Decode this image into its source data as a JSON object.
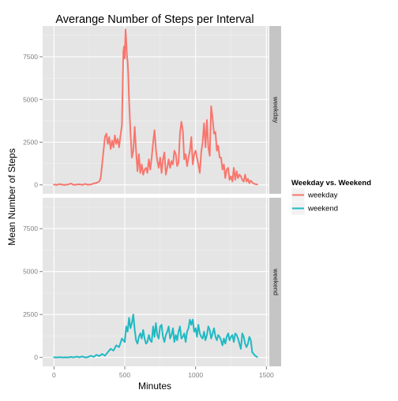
{
  "chart_data": {
    "type": "line",
    "title": "Averange Number of Steps per Interval",
    "xlabel": "Minutes",
    "ylabel": "Mean Number of Steps",
    "xlim": [
      -80,
      1515
    ],
    "ylim": [
      -520,
      9300
    ],
    "x_ticks": [
      0,
      500,
      1000,
      1500
    ],
    "x_tick_labels": [
      "0",
      "500",
      "1000",
      "1500"
    ],
    "y_ticks": [
      0,
      2500,
      5000,
      7500
    ],
    "y_tick_labels": [
      "0",
      "2500",
      "5000",
      "7500"
    ],
    "grid": true,
    "legend": {
      "title": "Weekday vs. Weekend",
      "position": "right",
      "entries": [
        "weekday",
        "weekend"
      ]
    },
    "facets": [
      "weekday",
      "weekend"
    ],
    "colors": {
      "weekday": "#F8766D",
      "weekend": "#1FB9C3",
      "panel_bg": "#E5E5E5",
      "grid": "#FFFFFF",
      "strip_bg": "#C5C5C5"
    },
    "series": [
      {
        "name": "weekday",
        "x": [
          0,
          20,
          40,
          60,
          80,
          100,
          120,
          140,
          160,
          180,
          200,
          220,
          240,
          260,
          280,
          300,
          320,
          330,
          340,
          350,
          360,
          370,
          380,
          390,
          400,
          410,
          420,
          430,
          440,
          450,
          460,
          470,
          480,
          490,
          495,
          500,
          505,
          510,
          515,
          520,
          525,
          530,
          540,
          550,
          560,
          570,
          580,
          590,
          600,
          610,
          620,
          630,
          640,
          650,
          660,
          670,
          680,
          690,
          700,
          710,
          720,
          730,
          740,
          750,
          760,
          770,
          780,
          790,
          800,
          810,
          820,
          830,
          840,
          850,
          860,
          870,
          880,
          890,
          900,
          910,
          920,
          930,
          940,
          950,
          960,
          970,
          980,
          990,
          1000,
          1010,
          1020,
          1030,
          1040,
          1050,
          1060,
          1070,
          1080,
          1090,
          1100,
          1110,
          1120,
          1130,
          1140,
          1150,
          1160,
          1170,
          1180,
          1190,
          1200,
          1210,
          1220,
          1230,
          1240,
          1250,
          1260,
          1270,
          1280,
          1290,
          1300,
          1310,
          1320,
          1330,
          1340,
          1350,
          1360,
          1370,
          1380,
          1390,
          1400,
          1410,
          1420,
          1435
        ],
        "values": [
          20,
          0,
          50,
          10,
          0,
          30,
          80,
          0,
          20,
          40,
          0,
          60,
          10,
          30,
          80,
          120,
          200,
          400,
          1200,
          2000,
          2800,
          3000,
          2400,
          2800,
          2100,
          2600,
          2200,
          2900,
          2400,
          2700,
          2200,
          2900,
          3500,
          7800,
          8100,
          7400,
          9100,
          8500,
          7600,
          7200,
          6400,
          5000,
          3100,
          1600,
          2000,
          3400,
          2000,
          800,
          1800,
          700,
          1200,
          600,
          900,
          1000,
          700,
          1500,
          900,
          1600,
          2500,
          3200,
          2100,
          1400,
          1000,
          1600,
          700,
          1500,
          1900,
          600,
          1000,
          1500,
          1000,
          1400,
          1200,
          2000,
          1800,
          1100,
          1300,
          3000,
          3700,
          3200,
          1500,
          1800,
          1100,
          1600,
          2000,
          2800,
          1200,
          1800,
          2000,
          1600,
          1200,
          700,
          1900,
          2500,
          3600,
          2200,
          3800,
          2200,
          1700,
          4600,
          3900,
          3000,
          3100,
          2000,
          2300,
          1600,
          1600,
          900,
          1200,
          400,
          900,
          1000,
          300,
          500,
          200,
          1000,
          300,
          800,
          400,
          600,
          500,
          300,
          200,
          600,
          200,
          350,
          100,
          250,
          150,
          80,
          50,
          30
        ]
      },
      {
        "name": "weekend",
        "x": [
          0,
          20,
          40,
          60,
          80,
          100,
          120,
          140,
          160,
          180,
          200,
          220,
          240,
          260,
          280,
          300,
          320,
          340,
          360,
          380,
          400,
          420,
          440,
          460,
          480,
          500,
          510,
          520,
          530,
          540,
          550,
          560,
          570,
          580,
          590,
          600,
          610,
          620,
          630,
          640,
          650,
          660,
          670,
          680,
          690,
          700,
          710,
          720,
          730,
          740,
          750,
          760,
          770,
          780,
          790,
          800,
          810,
          820,
          830,
          840,
          850,
          860,
          870,
          880,
          890,
          900,
          910,
          920,
          930,
          940,
          950,
          960,
          970,
          980,
          990,
          1000,
          1010,
          1020,
          1030,
          1040,
          1050,
          1060,
          1070,
          1080,
          1090,
          1100,
          1110,
          1120,
          1130,
          1140,
          1150,
          1160,
          1170,
          1180,
          1190,
          1200,
          1210,
          1220,
          1230,
          1240,
          1250,
          1260,
          1270,
          1280,
          1290,
          1300,
          1310,
          1320,
          1330,
          1340,
          1350,
          1360,
          1370,
          1380,
          1390,
          1400,
          1410,
          1420,
          1435
        ],
        "values": [
          10,
          0,
          20,
          0,
          10,
          0,
          30,
          0,
          50,
          10,
          60,
          0,
          20,
          100,
          30,
          150,
          80,
          200,
          100,
          300,
          500,
          400,
          700,
          600,
          1100,
          900,
          1800,
          1500,
          2300,
          1700,
          2000,
          2500,
          1600,
          1000,
          800,
          1200,
          1400,
          1100,
          1600,
          1100,
          800,
          900,
          1300,
          1000,
          900,
          1800,
          1200,
          2000,
          1300,
          1100,
          1800,
          1900,
          1200,
          900,
          1300,
          1500,
          1800,
          1100,
          1300,
          1700,
          900,
          1300,
          1000,
          1500,
          1800,
          1100,
          1200,
          1400,
          900,
          1500,
          1700,
          2200,
          1900,
          2200,
          1500,
          1700,
          1200,
          1900,
          1400,
          1200,
          1100,
          1500,
          1000,
          1300,
          1800,
          1600,
          1100,
          1400,
          1700,
          1200,
          1000,
          1300,
          1200,
          1000,
          700,
          1100,
          800,
          1200,
          1400,
          1000,
          1200,
          1300,
          900,
          1400,
          1300,
          1100,
          800,
          500,
          1400,
          1200,
          800,
          600,
          800,
          1200,
          1000,
          300,
          200,
          100,
          20
        ]
      }
    ]
  }
}
